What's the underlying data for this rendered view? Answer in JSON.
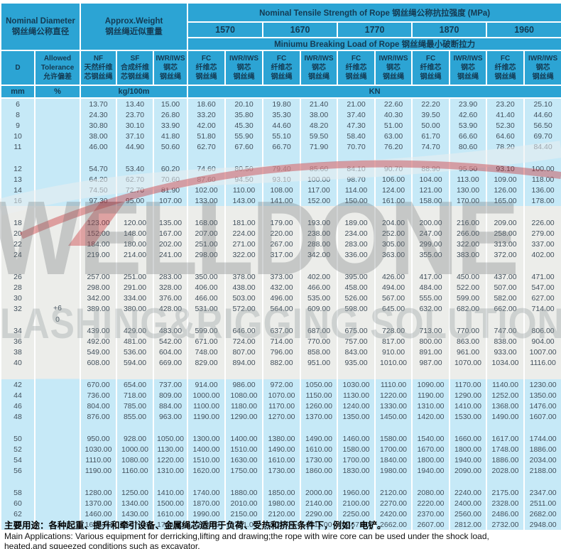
{
  "colors": {
    "header_blue": "#2CA4D4",
    "row_light_blue": "#C6E9F7",
    "watermark_band_gray": "#ECEDEA",
    "separator_white": "#FFFFFF",
    "header_text": "#143A52",
    "data_text": "#42505C",
    "watermark_red": "#C8282D"
  },
  "watermark": {
    "line1": "WELLDONE",
    "line2": "LASHING&RIGGING SOLUTION"
  },
  "table": {
    "nominal_diameter_en": "Nominal Diameter",
    "nominal_diameter_zh": "钢丝绳公称直径",
    "approx_weight_en": "Approx.Weight",
    "approx_weight_zh": "钢丝绳近似重量",
    "tensile_en": "Nominal Tensile Strength of Rope",
    "tensile_zh": "钢丝绳公称抗拉强度 (MPa)",
    "grades": [
      "1570",
      "1670",
      "1770",
      "1870",
      "1960"
    ],
    "breaking_en": "Miniumu Breaking Load of Rope",
    "breaking_zh": "钢丝绳最小破断拉力",
    "d_label": "D",
    "cols": {
      "tolerance": {
        "lines": [
          "Allowed",
          "Tolerance",
          "允许偏差"
        ]
      },
      "nf": {
        "lines": [
          "NF",
          "天然纤维",
          "芯钢丝绳"
        ]
      },
      "sf": {
        "lines": [
          "SF",
          "合成纤维",
          "芯钢丝绳"
        ]
      },
      "iwrws": {
        "lines": [
          "IWR/IWS",
          "钢芯",
          "钢丝绳"
        ]
      },
      "fc": {
        "lines": [
          "FC",
          "纤维芯",
          "钢丝绳"
        ]
      },
      "iwr": {
        "lines": [
          "IWR/IWS",
          "钢芯",
          "钢丝绳"
        ]
      }
    },
    "units": {
      "mm": "mm",
      "pct": "%",
      "kg": "kg/100m",
      "kn": "KN"
    },
    "tolerance_value": [
      "+6",
      "0"
    ],
    "groups": [
      {
        "wm": false,
        "rows": [
          [
            "6",
            "13.70",
            "13.40",
            "15.00",
            "18.60",
            "20.10",
            "19.80",
            "21.40",
            "21.00",
            "22.60",
            "22.20",
            "23.90",
            "23.20",
            "25.10"
          ],
          [
            "8",
            "24.30",
            "23.70",
            "26.80",
            "33.20",
            "35.80",
            "35.30",
            "38.00",
            "37.40",
            "40.30",
            "39.50",
            "42.60",
            "41.40",
            "44.60"
          ],
          [
            "9",
            "30.80",
            "30.10",
            "33.90",
            "42.00",
            "45.30",
            "44.60",
            "48.20",
            "47.30",
            "51.00",
            "50.00",
            "53.90",
            "52.30",
            "56.50"
          ],
          [
            "10",
            "38.00",
            "37.10",
            "41.80",
            "51.80",
            "55.90",
            "55.10",
            "59.50",
            "58.40",
            "63.00",
            "61.70",
            "66.60",
            "64.60",
            "69.70"
          ],
          [
            "11",
            "46.00",
            "44.90",
            "50.60",
            "62.70",
            "67.60",
            "66.70",
            "71.90",
            "70.70",
            "76.20",
            "74.70",
            "80.60",
            "78.20",
            "84.40"
          ]
        ]
      },
      {
        "wm": false,
        "rows": [
          [
            "12",
            "54.70",
            "53.40",
            "60.20",
            "74.60",
            "80.50",
            "79.40",
            "85.60",
            "84.10",
            "90.70",
            "88.90",
            "95.50",
            "93.10",
            "100.00"
          ],
          [
            "13",
            "64.20",
            "62.70",
            "70.60",
            "87.60",
            "94.50",
            "93.10",
            "100.00",
            "98.70",
            "106.00",
            "104.00",
            "113.00",
            "109.00",
            "118.00"
          ],
          [
            "14",
            "74.50",
            "72.70",
            "81.90",
            "102.00",
            "110.00",
            "108.00",
            "117.00",
            "114.00",
            "124.00",
            "121.00",
            "130.00",
            "126.00",
            "136.00"
          ],
          [
            "16",
            "97.30",
            "95.00",
            "107.00",
            "133.00",
            "143.00",
            "141.00",
            "152.00",
            "150.00",
            "161.00",
            "158.00",
            "170.00",
            "165.00",
            "178.00"
          ]
        ]
      },
      {
        "wm": true,
        "rows": [
          [
            "18",
            "123.00",
            "120.00",
            "135.00",
            "168.00",
            "181.00",
            "179.00",
            "193.00",
            "189.00",
            "204.00",
            "200.00",
            "216.00",
            "209.00",
            "226.00"
          ],
          [
            "20",
            "152.00",
            "148.00",
            "167.00",
            "207.00",
            "224.00",
            "220.00",
            "238.00",
            "234.00",
            "252.00",
            "247.00",
            "266.00",
            "258.00",
            "279.00"
          ],
          [
            "22",
            "184.00",
            "180.00",
            "202.00",
            "251.00",
            "271.00",
            "267.00",
            "288.00",
            "283.00",
            "305.00",
            "299.00",
            "322.00",
            "313.00",
            "337.00"
          ],
          [
            "24",
            "219.00",
            "214.00",
            "241.00",
            "298.00",
            "322.00",
            "317.00",
            "342.00",
            "336.00",
            "363.00",
            "355.00",
            "383.00",
            "372.00",
            "402.00"
          ]
        ]
      },
      {
        "wm": true,
        "rows": [
          [
            "26",
            "257.00",
            "251.00",
            "283.00",
            "350.00",
            "378.00",
            "373.00",
            "402.00",
            "395.00",
            "426.00",
            "417.00",
            "450.00",
            "437.00",
            "471.00"
          ],
          [
            "28",
            "298.00",
            "291.00",
            "328.00",
            "406.00",
            "438.00",
            "432.00",
            "466.00",
            "458.00",
            "494.00",
            "484.00",
            "522.00",
            "507.00",
            "547.00"
          ],
          [
            "30",
            "342.00",
            "334.00",
            "376.00",
            "466.00",
            "503.00",
            "496.00",
            "535.00",
            "526.00",
            "567.00",
            "555.00",
            "599.00",
            "582.00",
            "627.00"
          ],
          [
            "32",
            "389.00",
            "380.00",
            "428.00",
            "531.00",
            "572.00",
            "564.00",
            "609.00",
            "598.00",
            "645.00",
            "632.00",
            "682.00",
            "662.00",
            "714.00"
          ]
        ]
      },
      {
        "wm": true,
        "rows": [
          [
            "34",
            "439.00",
            "429.00",
            "483.00",
            "599.00",
            "646.00",
            "637.00",
            "687.00",
            "675.00",
            "728.00",
            "713.00",
            "770.00",
            "747.00",
            "806.00"
          ],
          [
            "36",
            "492.00",
            "481.00",
            "542.00",
            "671.00",
            "724.00",
            "714.00",
            "770.00",
            "757.00",
            "817.00",
            "800.00",
            "863.00",
            "838.00",
            "904.00"
          ],
          [
            "38",
            "549.00",
            "536.00",
            "604.00",
            "748.00",
            "807.00",
            "796.00",
            "858.00",
            "843.00",
            "910.00",
            "891.00",
            "961.00",
            "933.00",
            "1007.00"
          ],
          [
            "40",
            "608.00",
            "594.00",
            "669.00",
            "829.00",
            "894.00",
            "882.00",
            "951.00",
            "935.00",
            "1010.00",
            "987.00",
            "1070.00",
            "1034.00",
            "1116.00"
          ]
        ]
      },
      {
        "wm": false,
        "rows": [
          [
            "42",
            "670.00",
            "654.00",
            "737.00",
            "914.00",
            "986.00",
            "972.00",
            "1050.00",
            "1030.00",
            "1110.00",
            "1090.00",
            "1170.00",
            "1140.00",
            "1230.00"
          ],
          [
            "44",
            "736.00",
            "718.00",
            "809.00",
            "1000.00",
            "1080.00",
            "1070.00",
            "1150.00",
            "1130.00",
            "1220.00",
            "1190.00",
            "1290.00",
            "1252.00",
            "1350.00"
          ],
          [
            "46",
            "804.00",
            "785.00",
            "884.00",
            "1100.00",
            "1180.00",
            "1170.00",
            "1260.00",
            "1240.00",
            "1330.00",
            "1310.00",
            "1410.00",
            "1368.00",
            "1476.00"
          ],
          [
            "48",
            "876.00",
            "855.00",
            "963.00",
            "1190.00",
            "1290.00",
            "1270.00",
            "1370.00",
            "1350.00",
            "1450.00",
            "1420.00",
            "1530.00",
            "1490.00",
            "1607.00"
          ]
        ]
      },
      {
        "wm": false,
        "rows": [
          [
            "50",
            "950.00",
            "928.00",
            "1050.00",
            "1300.00",
            "1400.00",
            "1380.00",
            "1490.00",
            "1460.00",
            "1580.00",
            "1540.00",
            "1660.00",
            "1617.00",
            "1744.00"
          ],
          [
            "52",
            "1030.00",
            "1000.00",
            "1130.00",
            "1400.00",
            "1510.00",
            "1490.00",
            "1610.00",
            "1580.00",
            "1700.00",
            "1670.00",
            "1800.00",
            "1748.00",
            "1886.00"
          ],
          [
            "54",
            "1110.00",
            "1080.00",
            "1220.00",
            "1510.00",
            "1630.00",
            "1610.00",
            "1730.00",
            "1700.00",
            "1840.00",
            "1800.00",
            "1940.00",
            "1886.00",
            "2034.00"
          ],
          [
            "56",
            "1190.00",
            "1160.00",
            "1310.00",
            "1620.00",
            "1750.00",
            "1730.00",
            "1860.00",
            "1830.00",
            "1980.00",
            "1940.00",
            "2090.00",
            "2028.00",
            "2188.00"
          ]
        ]
      },
      {
        "wm": false,
        "rows": [
          [
            "58",
            "1280.00",
            "1250.00",
            "1410.00",
            "1740.00",
            "1880.00",
            "1850.00",
            "2000.00",
            "1960.00",
            "2120.00",
            "2080.00",
            "2240.00",
            "2175.00",
            "2347.00"
          ],
          [
            "60",
            "1370.00",
            "1340.00",
            "1500.00",
            "1870.00",
            "2010.00",
            "1980.00",
            "2140.00",
            "2100.00",
            "2270.00",
            "2220.00",
            "2400.00",
            "2328.00",
            "2511.00"
          ],
          [
            "62",
            "1460.00",
            "1430.00",
            "1610.00",
            "1990.00",
            "2150.00",
            "2120.00",
            "2290.00",
            "2250.00",
            "2420.00",
            "2370.00",
            "2560.00",
            "2486.00",
            "2682.00"
          ],
          [
            "65",
            "1606.00",
            "1567.00",
            "1766.00",
            "2188.00",
            "2361.00",
            "2328.00",
            "2511.00",
            "2467.00",
            "2662.00",
            "2607.00",
            "2812.00",
            "2732.00",
            "2948.00"
          ]
        ]
      }
    ]
  },
  "footer": {
    "zh": "主要用途：各种起重、提升和牵引设备、金属绳芯适用于负荷、受热和挤压条件下，例如：电铲。",
    "en1": "Main Applications: Various equipment for derricking,lifting and drawing;the rope with wire core can be used under the shock load,",
    "en2": "heated.and squeezed conditions such as excavator."
  }
}
